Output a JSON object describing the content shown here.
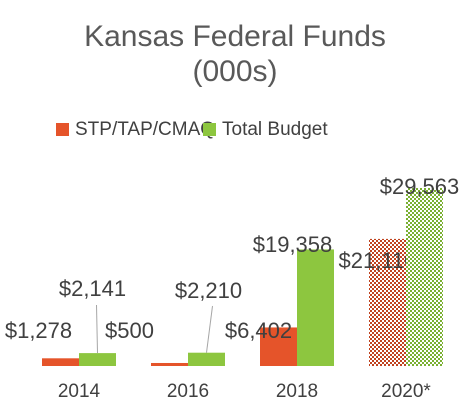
{
  "chart_data": {
    "type": "bar",
    "title": "Kansas Federal Funds",
    "subtitle": "(000s)",
    "categories": [
      "2014",
      "2016",
      "2018",
      "2020*"
    ],
    "series": [
      {
        "name": "STP/TAP/CMAQ",
        "color": "#e5542a",
        "values": [
          1278,
          500,
          6402,
          21110
        ],
        "value_labels": [
          "$1,278",
          "$500",
          "$6,402",
          "$21,110"
        ],
        "hatched": [
          false,
          false,
          false,
          true
        ]
      },
      {
        "name": "Total Budget",
        "color": "#8dc63f",
        "values": [
          2141,
          2210,
          19358,
          29563
        ],
        "value_labels": [
          "$2,141",
          "$2,210",
          "$19,358",
          "$29,563"
        ],
        "hatched": [
          false,
          false,
          false,
          true
        ]
      }
    ],
    "legend": "top",
    "grid": false
  }
}
